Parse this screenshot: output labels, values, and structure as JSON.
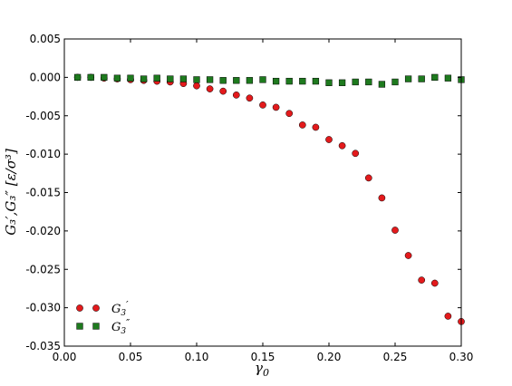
{
  "chart_data": {
    "type": "scatter",
    "xlabel": "γ",
    "xlabel_sub": "0",
    "ylabel": "G₃′,G₃″ [ε/σ³]",
    "xlim": [
      0.0,
      0.3
    ],
    "ylim": [
      -0.035,
      0.005
    ],
    "xticks": [
      "0.00",
      "0.05",
      "0.10",
      "0.15",
      "0.20",
      "0.25",
      "0.30"
    ],
    "yticks": [
      "0.005",
      "0.000",
      "-0.005",
      "-0.010",
      "-0.015",
      "-0.020",
      "-0.025",
      "-0.030",
      "-0.035"
    ],
    "x": [
      0.01,
      0.02,
      0.03,
      0.04,
      0.05,
      0.06,
      0.07,
      0.08,
      0.09,
      0.1,
      0.11,
      0.12,
      0.13,
      0.14,
      0.15,
      0.16,
      0.17,
      0.18,
      0.19,
      0.2,
      0.21,
      0.22,
      0.23,
      0.24,
      0.25,
      0.26,
      0.27,
      0.28,
      0.29,
      0.3
    ],
    "legend_position": "lower-left",
    "grid": false,
    "series": [
      {
        "name": "G₃′",
        "label_main": "G",
        "label_sub": "3",
        "label_sup": "′",
        "marker": "circle",
        "color": "#e31a1c",
        "values": [
          0.0,
          0.0,
          -0.0001,
          -0.0002,
          -0.0003,
          -0.0004,
          -0.0005,
          -0.0006,
          -0.0008,
          -0.0011,
          -0.0015,
          -0.0018,
          -0.0023,
          -0.0027,
          -0.0036,
          -0.0039,
          -0.0047,
          -0.0062,
          -0.0065,
          -0.0081,
          -0.0089,
          -0.0099,
          -0.0131,
          -0.0157,
          -0.0199,
          -0.0232,
          -0.0264,
          -0.0268,
          -0.0311,
          -0.0318
        ]
      },
      {
        "name": "G₃″",
        "label_main": "G",
        "label_sub": "3",
        "label_sup": "″",
        "marker": "square",
        "color": "#1e7a1e",
        "values": [
          0.0,
          0.0,
          0.0,
          -0.0001,
          -0.0001,
          -0.0002,
          -0.0001,
          -0.0002,
          -0.0002,
          -0.0003,
          -0.0003,
          -0.0004,
          -0.0004,
          -0.0004,
          -0.0003,
          -0.0005,
          -0.0005,
          -0.0005,
          -0.0005,
          -0.0007,
          -0.0007,
          -0.0006,
          -0.0006,
          -0.0009,
          -0.0006,
          -0.0002,
          -0.0002,
          0.0,
          -0.0001,
          -0.0003
        ]
      }
    ]
  }
}
